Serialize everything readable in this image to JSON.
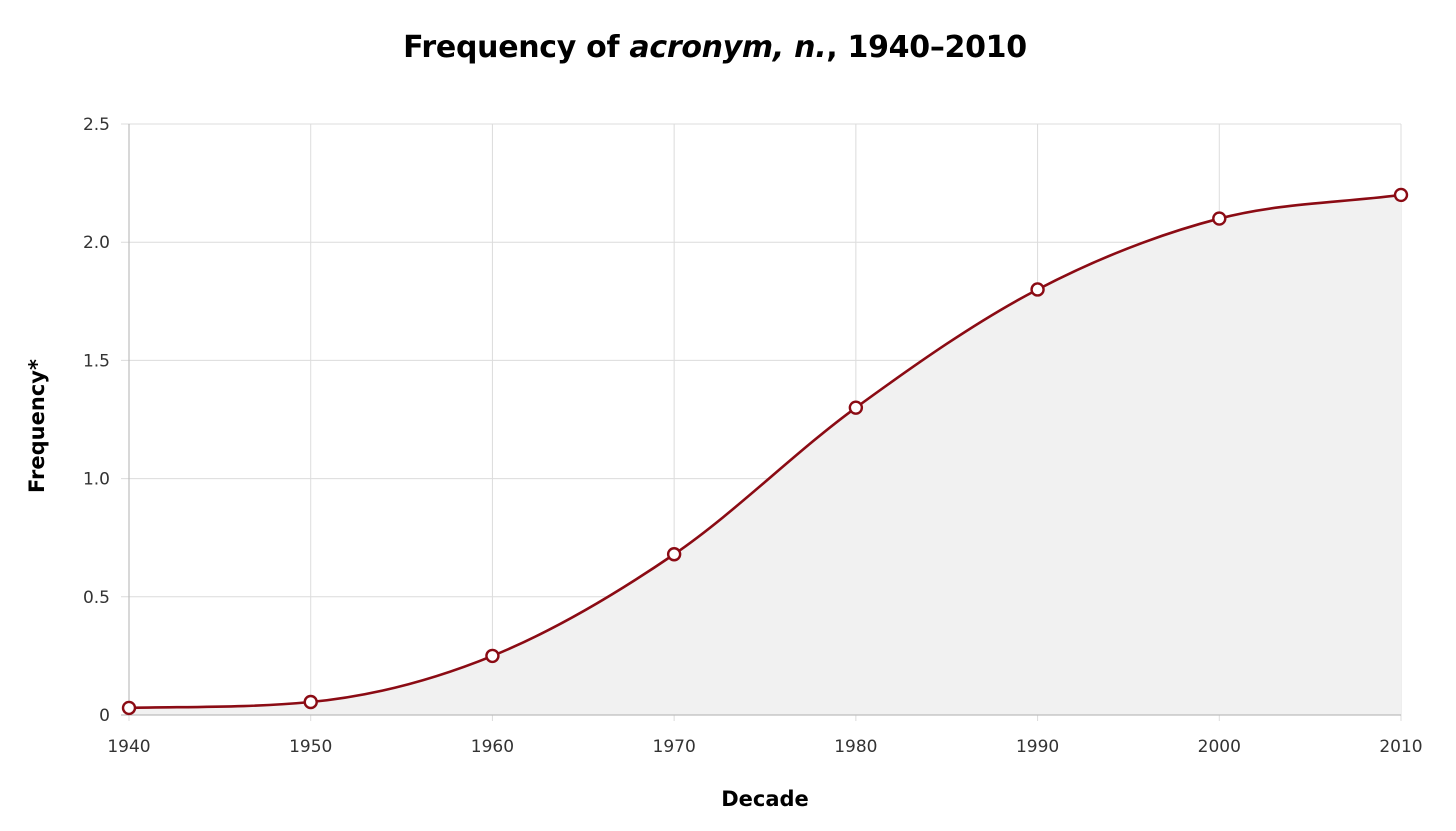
{
  "chart_data": {
    "type": "line",
    "title_prefix": "Frequency of ",
    "title_term": "acronym, n.",
    "title_suffix": ", 1940–2010",
    "xlabel": "Decade",
    "ylabel": "Frequency*",
    "x": [
      1940,
      1950,
      1960,
      1970,
      1980,
      1990,
      2000,
      2010
    ],
    "x_tick_labels": [
      "1940",
      "1950",
      "1960",
      "1970",
      "1980",
      "1990",
      "2000",
      "2010"
    ],
    "y_tick_labels": [
      "0",
      "0.5",
      "1.0",
      "1.5",
      "2.0",
      "2.5"
    ],
    "y_ticks": [
      0,
      0.5,
      1.0,
      1.5,
      2.0,
      2.5
    ],
    "series": [
      {
        "values": [
          0.03,
          0.055,
          0.25,
          0.68,
          1.3,
          1.8,
          2.1,
          2.2
        ]
      }
    ],
    "xlim": [
      1940,
      2010
    ],
    "ylim": [
      0,
      2.5
    ],
    "grid": true,
    "smooth": true,
    "area_fill": true,
    "colors": {
      "line": "#8b0b14",
      "marker_fill": "#ffffff",
      "area": "#f1f1f1",
      "grid": "#dcdcdc",
      "axis": "#bdbdbd"
    }
  }
}
